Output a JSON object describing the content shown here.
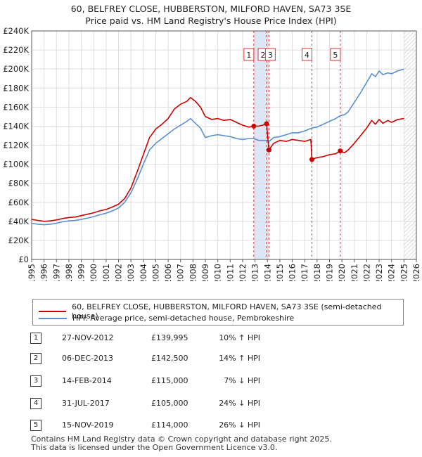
{
  "title_line1": "60, BELFREY CLOSE, HUBBERSTON, MILFORD HAVEN, SA73 3SE",
  "title_line2": "Price paid vs. HM Land Registry's House Price Index (HPI)",
  "colors": {
    "property": "#cc0000",
    "hpi": "#5b8fd0",
    "shade": "#dde6f6"
  },
  "chart_data": {
    "type": "line",
    "ylim": [
      0,
      240000
    ],
    "xlim": [
      1995,
      2026
    ],
    "y_tick_labels": [
      "£0",
      "£20K",
      "£40K",
      "£60K",
      "£80K",
      "£100K",
      "£120K",
      "£140K",
      "£160K",
      "£180K",
      "£200K",
      "£220K",
      "£240K"
    ],
    "x_tick_labels": [
      "1995",
      "1996",
      "1997",
      "1998",
      "1999",
      "2000",
      "2001",
      "2002",
      "2003",
      "2004",
      "2005",
      "2006",
      "2007",
      "2008",
      "2009",
      "2010",
      "2011",
      "2012",
      "2013",
      "2014",
      "2015",
      "2016",
      "2017",
      "2018",
      "2019",
      "2020",
      "2021",
      "2022",
      "2023",
      "2024",
      "2025",
      "2026"
    ],
    "series": [
      {
        "name": "60, BELFREY CLOSE, HUBBERSTON, MILFORD HAVEN, SA73 3SE (semi-detached house)",
        "points": [
          [
            1995.0,
            42000
          ],
          [
            1995.5,
            41000
          ],
          [
            1996.0,
            40000
          ],
          [
            1996.5,
            40500
          ],
          [
            1997.0,
            41500
          ],
          [
            1997.5,
            43000
          ],
          [
            1998.0,
            44000
          ],
          [
            1998.5,
            44500
          ],
          [
            1999.0,
            46000
          ],
          [
            1999.5,
            47500
          ],
          [
            2000.0,
            49000
          ],
          [
            2000.5,
            51000
          ],
          [
            2001.0,
            52500
          ],
          [
            2001.5,
            55000
          ],
          [
            2002.0,
            58000
          ],
          [
            2002.5,
            64000
          ],
          [
            2003.0,
            75000
          ],
          [
            2003.5,
            92000
          ],
          [
            2004.0,
            110000
          ],
          [
            2004.5,
            128000
          ],
          [
            2005.0,
            137000
          ],
          [
            2005.5,
            142000
          ],
          [
            2006.0,
            148000
          ],
          [
            2006.5,
            158000
          ],
          [
            2007.0,
            163000
          ],
          [
            2007.5,
            166000
          ],
          [
            2007.8,
            170000
          ],
          [
            2008.2,
            166000
          ],
          [
            2008.6,
            160000
          ],
          [
            2009.0,
            150000
          ],
          [
            2009.5,
            147000
          ],
          [
            2010.0,
            148000
          ],
          [
            2010.5,
            146000
          ],
          [
            2011.0,
            147000
          ],
          [
            2011.5,
            144000
          ],
          [
            2012.0,
            141000
          ],
          [
            2012.5,
            139000
          ],
          [
            2012.9,
            139995
          ],
          [
            2013.3,
            140000
          ],
          [
            2013.6,
            141000
          ],
          [
            2013.93,
            142500
          ],
          [
            2014.12,
            115000
          ],
          [
            2014.5,
            122000
          ],
          [
            2015.0,
            125000
          ],
          [
            2015.5,
            124000
          ],
          [
            2016.0,
            126000
          ],
          [
            2016.5,
            125000
          ],
          [
            2017.0,
            124000
          ],
          [
            2017.5,
            126000
          ],
          [
            2017.58,
            105000
          ],
          [
            2018.0,
            107000
          ],
          [
            2018.5,
            108000
          ],
          [
            2019.0,
            110000
          ],
          [
            2019.5,
            111000
          ],
          [
            2019.87,
            114000
          ],
          [
            2020.2,
            112000
          ],
          [
            2020.5,
            115000
          ],
          [
            2021.0,
            122000
          ],
          [
            2021.5,
            130000
          ],
          [
            2022.0,
            138000
          ],
          [
            2022.4,
            146000
          ],
          [
            2022.7,
            142000
          ],
          [
            2023.0,
            147000
          ],
          [
            2023.3,
            143000
          ],
          [
            2023.7,
            146000
          ],
          [
            2024.0,
            144000
          ],
          [
            2024.5,
            147000
          ],
          [
            2025.0,
            148000
          ]
        ]
      },
      {
        "name": "HPI: Average price, semi-detached house, Pembrokeshire",
        "points": [
          [
            1995.0,
            38000
          ],
          [
            1995.5,
            37000
          ],
          [
            1996.0,
            36500
          ],
          [
            1996.5,
            37000
          ],
          [
            1997.0,
            38000
          ],
          [
            1997.5,
            39500
          ],
          [
            1998.0,
            40500
          ],
          [
            1998.5,
            41000
          ],
          [
            1999.0,
            42000
          ],
          [
            1999.5,
            43500
          ],
          [
            2000.0,
            45000
          ],
          [
            2000.5,
            47000
          ],
          [
            2001.0,
            48500
          ],
          [
            2001.5,
            51000
          ],
          [
            2002.0,
            54000
          ],
          [
            2002.5,
            60000
          ],
          [
            2003.0,
            70000
          ],
          [
            2003.5,
            84000
          ],
          [
            2004.0,
            100000
          ],
          [
            2004.5,
            115000
          ],
          [
            2005.0,
            122000
          ],
          [
            2005.5,
            127000
          ],
          [
            2006.0,
            132000
          ],
          [
            2006.5,
            137000
          ],
          [
            2007.0,
            141000
          ],
          [
            2007.5,
            145000
          ],
          [
            2007.8,
            148000
          ],
          [
            2008.2,
            143000
          ],
          [
            2008.6,
            138000
          ],
          [
            2009.0,
            128000
          ],
          [
            2009.5,
            130000
          ],
          [
            2010.0,
            131000
          ],
          [
            2010.5,
            130000
          ],
          [
            2011.0,
            129000
          ],
          [
            2011.5,
            127000
          ],
          [
            2012.0,
            126000
          ],
          [
            2012.5,
            127000
          ],
          [
            2012.9,
            127000
          ],
          [
            2013.3,
            125000
          ],
          [
            2013.93,
            125000
          ],
          [
            2014.12,
            124000
          ],
          [
            2014.5,
            128000
          ],
          [
            2015.0,
            129000
          ],
          [
            2015.5,
            131000
          ],
          [
            2016.0,
            133000
          ],
          [
            2016.5,
            133000
          ],
          [
            2017.0,
            135000
          ],
          [
            2017.58,
            138000
          ],
          [
            2018.0,
            139000
          ],
          [
            2018.5,
            142000
          ],
          [
            2019.0,
            145000
          ],
          [
            2019.5,
            148000
          ],
          [
            2019.87,
            151000
          ],
          [
            2020.2,
            152000
          ],
          [
            2020.5,
            155000
          ],
          [
            2021.0,
            165000
          ],
          [
            2021.5,
            175000
          ],
          [
            2022.0,
            186000
          ],
          [
            2022.4,
            195000
          ],
          [
            2022.7,
            192000
          ],
          [
            2023.0,
            198000
          ],
          [
            2023.3,
            194000
          ],
          [
            2023.7,
            196000
          ],
          [
            2024.0,
            195000
          ],
          [
            2024.5,
            198000
          ],
          [
            2025.0,
            200000
          ]
        ]
      }
    ],
    "sales": [
      {
        "label": "1",
        "x": 2012.9,
        "y": 139995
      },
      {
        "label": "2",
        "x": 2013.93,
        "y": 142500
      },
      {
        "label": "3",
        "x": 2014.12,
        "y": 115000
      },
      {
        "label": "4",
        "x": 2017.58,
        "y": 105000
      },
      {
        "label": "5",
        "x": 2019.87,
        "y": 114000
      }
    ],
    "shaded_ranges": [
      [
        2012.9,
        2014.12
      ]
    ],
    "future_hatch_from": 2025.0
  },
  "legend": {
    "property": "60, BELFREY CLOSE, HUBBERSTON, MILFORD HAVEN, SA73 3SE (semi-detached house)",
    "hpi": "HPI: Average price, semi-detached house, Pembrokeshire"
  },
  "sales_table": [
    {
      "num": "1",
      "date": "27-NOV-2012",
      "price": "£139,995",
      "hpi": "10% ↑ HPI"
    },
    {
      "num": "2",
      "date": "06-DEC-2013",
      "price": "£142,500",
      "hpi": "14% ↑ HPI"
    },
    {
      "num": "3",
      "date": "14-FEB-2014",
      "price": "£115,000",
      "hpi": "7% ↓ HPI"
    },
    {
      "num": "4",
      "date": "31-JUL-2017",
      "price": "£105,000",
      "hpi": "24% ↓ HPI"
    },
    {
      "num": "5",
      "date": "15-NOV-2019",
      "price": "£114,000",
      "hpi": "26% ↓ HPI"
    }
  ],
  "footer_line1": "Contains HM Land Registry data © Crown copyright and database right 2025.",
  "footer_line2": "This data is licensed under the Open Government Licence v3.0."
}
